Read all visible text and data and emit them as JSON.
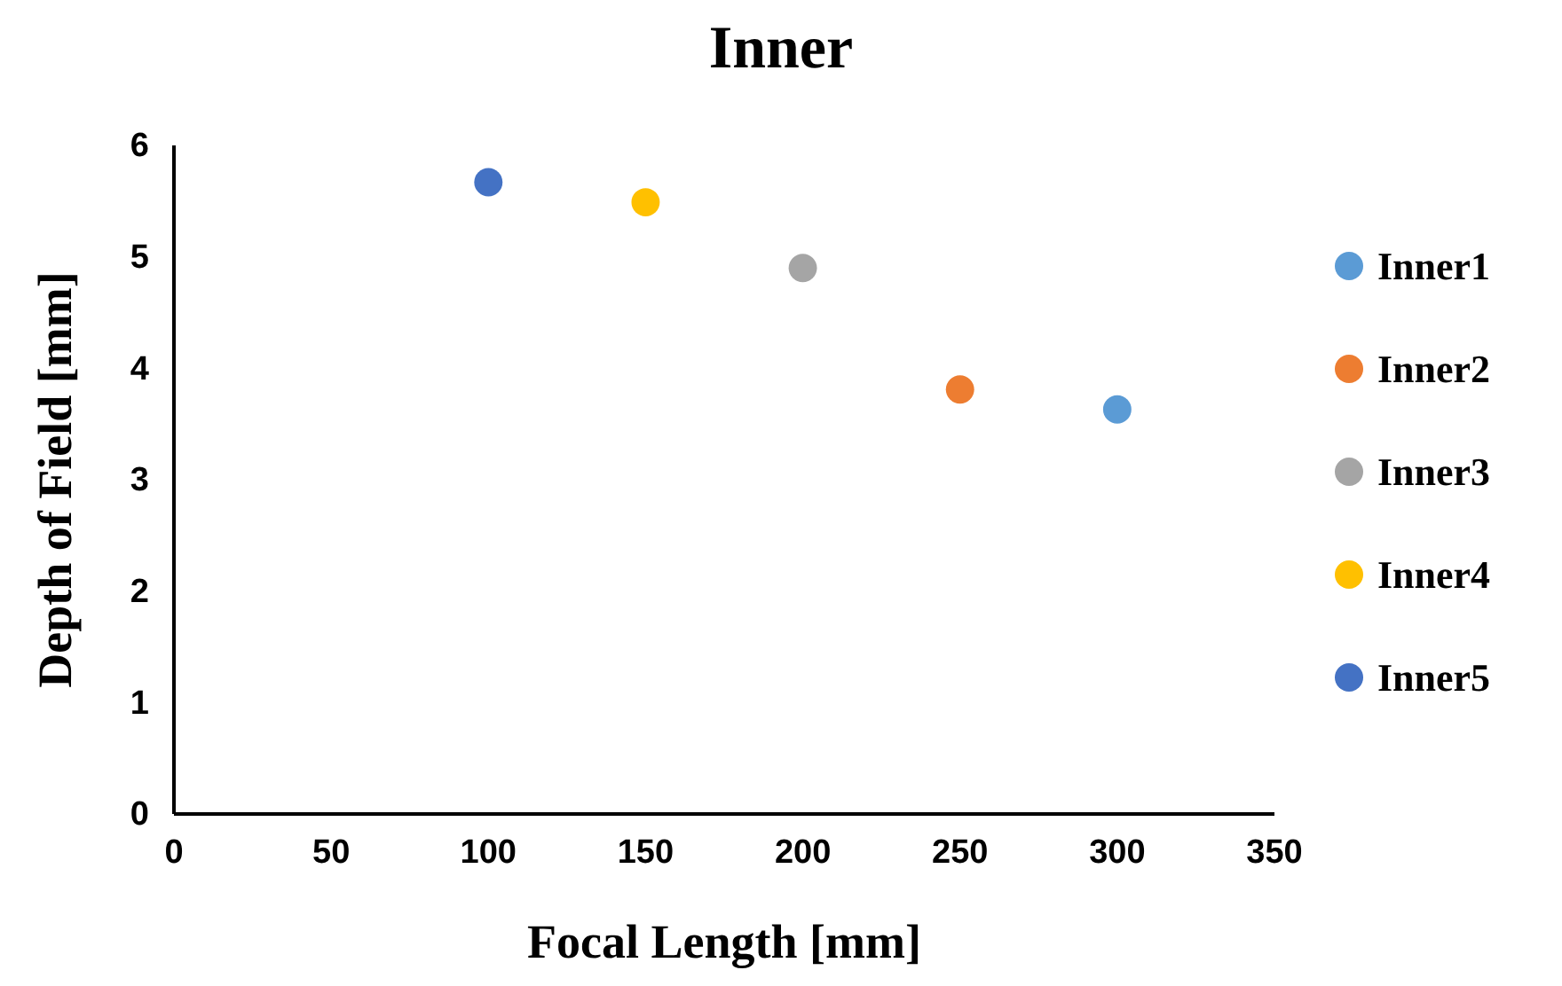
{
  "chart_data": {
    "type": "scatter",
    "title": "Inner",
    "xlabel": "Focal Length [mm]",
    "ylabel": "Depth of Field [mm]",
    "xlim": [
      0,
      350
    ],
    "xticks": [
      0,
      50,
      100,
      150,
      200,
      250,
      300,
      350
    ],
    "ylim": [
      0,
      6
    ],
    "yticks": [
      0,
      1,
      2,
      3,
      4,
      5,
      6
    ],
    "grid": false,
    "legend": "right",
    "marker": "circle",
    "series": [
      {
        "name": "Inner1",
        "color": "#5b9bd5",
        "x": [
          300
        ],
        "values": [
          3.63
        ]
      },
      {
        "name": "Inner2",
        "color": "#ed7d31",
        "x": [
          250
        ],
        "values": [
          3.81
        ]
      },
      {
        "name": "Inner3",
        "color": "#a5a5a5",
        "x": [
          200
        ],
        "values": [
          4.9
        ]
      },
      {
        "name": "Inner4",
        "color": "#ffc000",
        "x": [
          150
        ],
        "values": [
          5.49
        ]
      },
      {
        "name": "Inner5",
        "color": "#4472c4",
        "x": [
          100
        ],
        "values": [
          5.67
        ]
      }
    ]
  }
}
